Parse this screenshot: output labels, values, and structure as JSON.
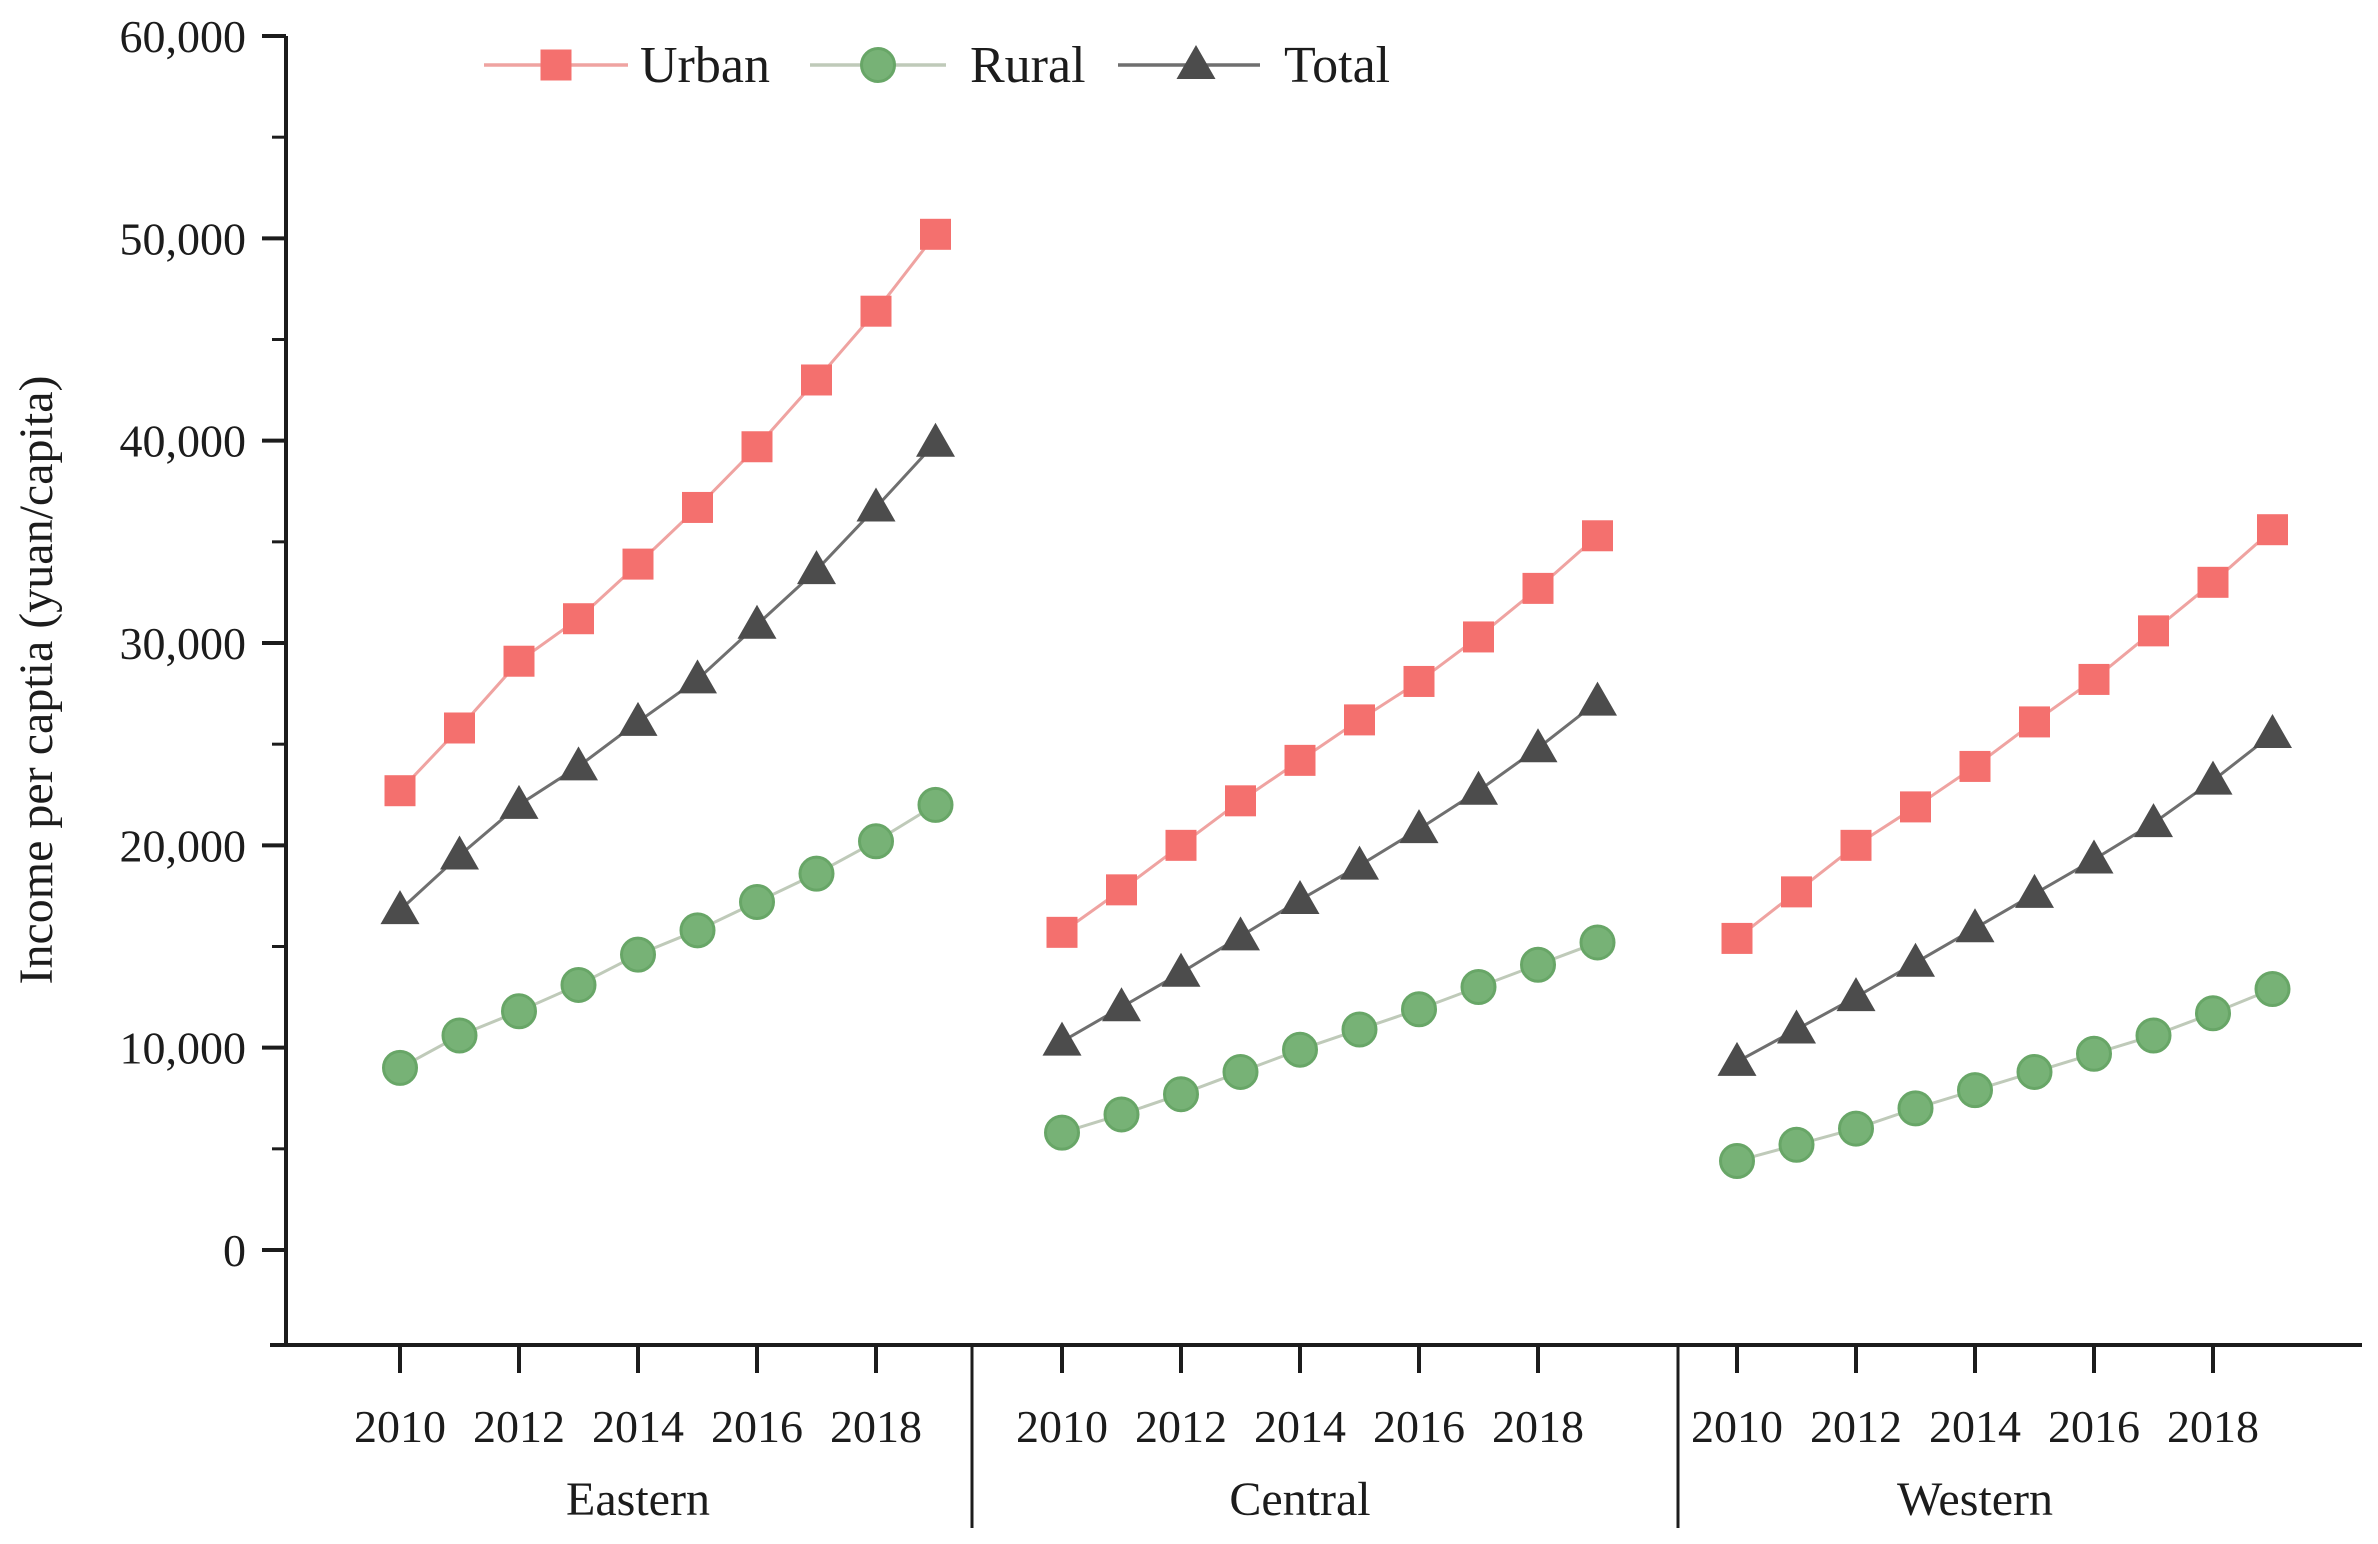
{
  "figure": {
    "y_axis": {
      "label": "Income per captia (yuan/capita)",
      "tick_values": [
        0,
        10000,
        20000,
        30000,
        40000,
        50000,
        60000
      ],
      "tick_labels": [
        "0",
        "10,000",
        "20,000",
        "30,000",
        "40,000",
        "50,000",
        "60,000"
      ],
      "minor_step": 5000,
      "min": 0,
      "max": 60000
    },
    "x_axis": {
      "tick_years": [
        2010,
        2012,
        2014,
        2016,
        2018
      ]
    },
    "legend": [
      {
        "label": "Urban",
        "marker": "square"
      },
      {
        "label": "Rural",
        "marker": "circle"
      },
      {
        "label": "Total",
        "marker": "triangle"
      }
    ],
    "colors": {
      "urban_marker": "#f4706e",
      "urban_line": "#efa3a1",
      "rural_marker": "#77b276",
      "rural_ring": "#68a667",
      "rural_line": "#bfcab9",
      "total_marker": "#4c4c4c",
      "total_line": "#6f6f6f",
      "axis": "#1c1c1c",
      "text": "#1c1c1c"
    }
  },
  "chart_data": {
    "type": "line",
    "title": "",
    "xlabel": "",
    "ylabel": "Income per captia (yuan/capita)",
    "ylim": [
      0,
      60000
    ],
    "grid": false,
    "legend_position": "top",
    "years": [
      2010,
      2011,
      2012,
      2013,
      2014,
      2015,
      2016,
      2017,
      2018,
      2019
    ],
    "panels": [
      {
        "name": "Eastern",
        "series": [
          {
            "name": "Urban",
            "values": [
              22700,
              25800,
              29100,
              31200,
              33900,
              36700,
              39700,
              43000,
              46400,
              50200
            ]
          },
          {
            "name": "Rural",
            "values": [
              9000,
              10600,
              11800,
              13100,
              14600,
              15800,
              17200,
              18600,
              20200,
              22000
            ]
          },
          {
            "name": "Total",
            "values": [
              16800,
              19500,
              22000,
              23900,
              26100,
              28200,
              30900,
              33600,
              36700,
              39900
            ]
          }
        ]
      },
      {
        "name": "Central",
        "series": [
          {
            "name": "Urban",
            "values": [
              15700,
              17800,
              20000,
              22200,
              24200,
              26200,
              28100,
              30300,
              32700,
              35300
            ]
          },
          {
            "name": "Rural",
            "values": [
              5800,
              6700,
              7700,
              8800,
              9900,
              10900,
              11900,
              13000,
              14100,
              15200
            ]
          },
          {
            "name": "Total",
            "values": [
              10300,
              12000,
              13700,
              15500,
              17300,
              19000,
              20800,
              22700,
              24800,
              27100
            ]
          }
        ]
      },
      {
        "name": "Western",
        "series": [
          {
            "name": "Urban",
            "values": [
              15400,
              17700,
              20000,
              21900,
              23900,
              26100,
              28200,
              30600,
              33000,
              35600
            ]
          },
          {
            "name": "Rural",
            "values": [
              4400,
              5200,
              6000,
              7000,
              7900,
              8800,
              9700,
              10600,
              11700,
              12900
            ]
          },
          {
            "name": "Total",
            "values": [
              9300,
              10900,
              12500,
              14200,
              15900,
              17600,
              19300,
              21100,
              23200,
              25500
            ]
          }
        ]
      }
    ]
  }
}
